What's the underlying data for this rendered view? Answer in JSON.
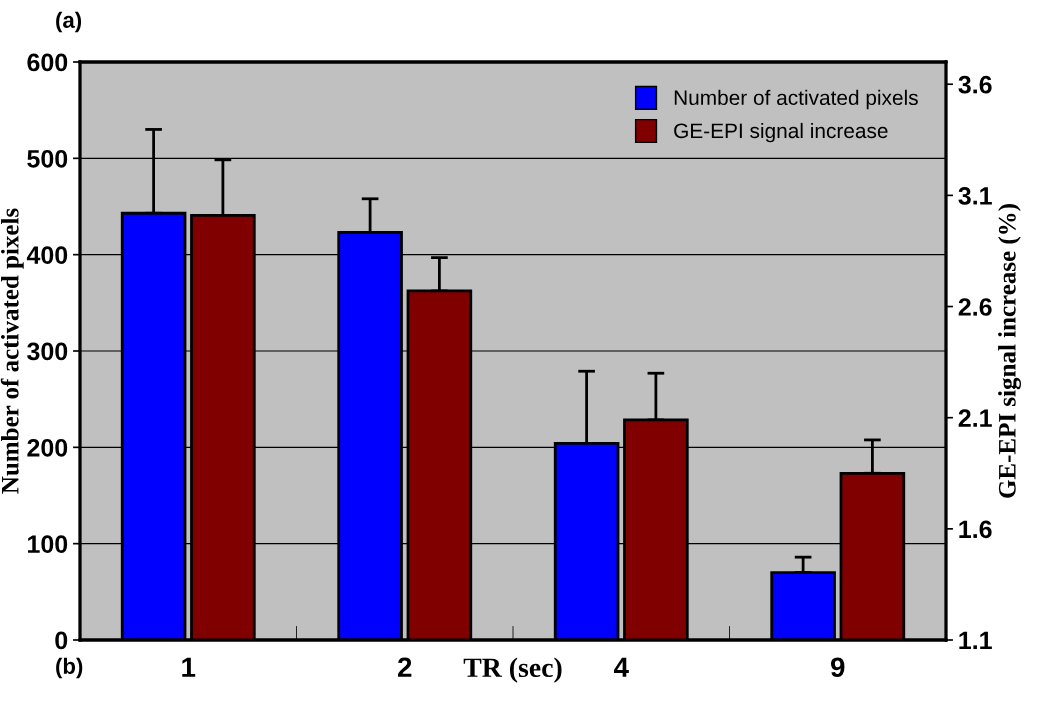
{
  "chart_data": {
    "type": "bar",
    "xlabel": "TR (sec)",
    "ylabel": "Number of activated pixels",
    "y2label": "GE-EPI signal increase (%)",
    "categories": [
      "1",
      "2",
      "4",
      "9"
    ],
    "series": [
      {
        "name": "Number of activated pixels",
        "color": "#0000ff",
        "values": [
          443,
          423,
          204,
          70
        ],
        "errors": [
          [
            443,
            530
          ],
          [
            423,
            458
          ],
          [
            204,
            279
          ],
          [
            70,
            86
          ]
        ]
      },
      {
        "name": "GE-EPI signal increase",
        "color": "#800000",
        "axis": "y2",
        "values": [
          3.01,
          2.67,
          2.09,
          1.85
        ],
        "errors": [
          [
            3.01,
            3.26
          ],
          [
            2.67,
            2.82
          ],
          [
            2.09,
            2.3
          ],
          [
            1.85,
            2.0
          ]
        ]
      }
    ],
    "ylim": [
      0,
      600
    ],
    "yticks": [
      0,
      100,
      200,
      300,
      400,
      500,
      600
    ],
    "y2lim": [
      1.1,
      3.7
    ],
    "y2ticks": [
      1.1,
      1.6,
      2.1,
      2.6,
      3.1,
      3.6
    ],
    "grid": "y",
    "legend": "top right",
    "annotations": [
      "(a)",
      "(b)"
    ]
  }
}
